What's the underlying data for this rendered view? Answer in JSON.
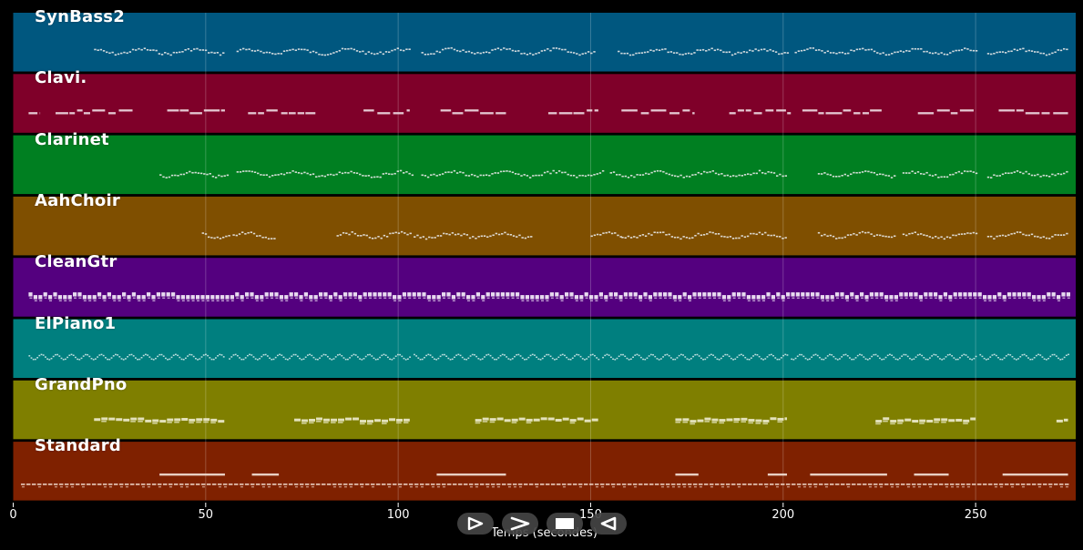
{
  "player": {
    "xaxis_label": "Temps (secondes)",
    "controls": [
      {
        "name": "play-from-start-button",
        "icon": "play-outline-icon"
      },
      {
        "name": "fast-forward-button",
        "icon": "chevron-right-icon"
      },
      {
        "name": "stop-button",
        "icon": "stop-square-icon"
      },
      {
        "name": "rewind-button",
        "icon": "triangle-left-icon"
      }
    ]
  },
  "chart_data": {
    "type": "piano-roll",
    "title": "",
    "xlabel": "Temps (secondes)",
    "ylabel": "",
    "xlim": [
      0,
      276
    ],
    "xticks": [
      0,
      50,
      100,
      150,
      200,
      250
    ],
    "xtick_labels": [
      "0",
      "50",
      "100",
      "150",
      "200",
      "250"
    ],
    "grid": true,
    "tracks": [
      {
        "name": "SynBass2",
        "color": "#00577f",
        "style": "dense",
        "segments": [
          [
            21,
            55
          ],
          [
            58,
            103
          ],
          [
            106,
            151
          ],
          [
            157,
            201
          ],
          [
            203,
            250
          ],
          [
            253,
            274
          ]
        ]
      },
      {
        "name": "Clavi.",
        "color": "#7f0029",
        "style": "phrases",
        "segments": [
          [
            4,
            7
          ],
          [
            11,
            31
          ],
          [
            40,
            55
          ],
          [
            61,
            79
          ],
          [
            91,
            103
          ],
          [
            111,
            128
          ],
          [
            139,
            152
          ],
          [
            158,
            177
          ],
          [
            186,
            202
          ],
          [
            205,
            226
          ],
          [
            235,
            250
          ],
          [
            256,
            274
          ]
        ]
      },
      {
        "name": "Clarinet",
        "color": "#007f21",
        "style": "dense",
        "segments": [
          [
            38,
            56
          ],
          [
            58,
            104
          ],
          [
            106,
            153
          ],
          [
            155,
            201
          ],
          [
            209,
            229
          ],
          [
            231,
            250
          ],
          [
            253,
            274
          ]
        ]
      },
      {
        "name": "AahChoir",
        "color": "#7f4f00",
        "style": "dense",
        "segments": [
          [
            49,
            56
          ],
          [
            57,
            68
          ],
          [
            84,
            103
          ],
          [
            104,
            135
          ],
          [
            150,
            158
          ],
          [
            158,
            201
          ],
          [
            209,
            229
          ],
          [
            231,
            250
          ],
          [
            253,
            274
          ]
        ]
      },
      {
        "name": "CleanGtr",
        "color": "#54007f",
        "style": "blocks",
        "segments": [
          [
            4,
            274
          ]
        ]
      },
      {
        "name": "ElPiano1",
        "color": "#007f7f",
        "style": "wave",
        "segments": [
          [
            4,
            55
          ],
          [
            56,
            103
          ],
          [
            104,
            152
          ],
          [
            153,
            201
          ],
          [
            202,
            250
          ],
          [
            251,
            274
          ]
        ]
      },
      {
        "name": "GrandPno",
        "color": "#7f7f00",
        "style": "held",
        "segments": [
          [
            21,
            55
          ],
          [
            73,
            103
          ],
          [
            120,
            152
          ],
          [
            172,
            201
          ],
          [
            224,
            250
          ],
          [
            271,
            274
          ]
        ]
      },
      {
        "name": "Standard",
        "color": "#7f2100",
        "style": "drums",
        "segments": [
          [
            2,
            274
          ]
        ]
      }
    ]
  }
}
